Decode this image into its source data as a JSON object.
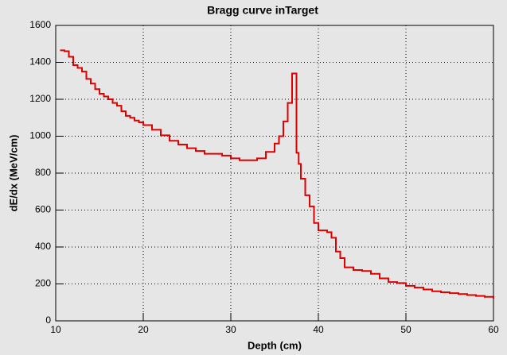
{
  "chart_data": {
    "type": "step",
    "title": "Bragg curve inTarget",
    "x_label": "Depth (cm)",
    "y_label": "dE/dx  (MeV/cm)",
    "x": [
      10.5,
      11,
      11.5,
      12,
      12.5,
      13,
      13.5,
      14,
      14.5,
      15,
      15.5,
      16,
      16.5,
      17,
      17.5,
      18,
      18.5,
      19,
      19.5,
      20,
      21,
      22,
      23,
      24,
      25,
      26,
      27,
      28,
      29,
      30,
      31,
      32,
      33,
      34,
      35,
      35.5,
      36,
      36.5,
      37,
      37.5,
      37.75,
      38,
      38.5,
      39,
      39.5,
      40,
      41,
      41.5,
      42,
      42.5,
      43,
      44,
      45,
      46,
      47,
      48,
      49,
      50,
      51,
      52,
      53,
      54,
      55,
      56,
      57,
      58,
      59,
      60
    ],
    "values": [
      1465,
      1460,
      1430,
      1385,
      1370,
      1350,
      1310,
      1285,
      1255,
      1230,
      1215,
      1200,
      1180,
      1165,
      1135,
      1110,
      1100,
      1085,
      1075,
      1060,
      1035,
      1005,
      975,
      955,
      935,
      920,
      905,
      905,
      895,
      880,
      870,
      870,
      880,
      915,
      960,
      1000,
      1080,
      1180,
      1340,
      910,
      850,
      770,
      680,
      620,
      530,
      490,
      480,
      450,
      375,
      340,
      290,
      275,
      270,
      255,
      230,
      210,
      205,
      190,
      180,
      170,
      160,
      155,
      150,
      145,
      140,
      135,
      130,
      120
    ],
    "color": "#e00000",
    "xlim": [
      10,
      60
    ],
    "xticks": [
      10,
      20,
      30,
      40,
      50,
      60
    ],
    "ylim": [
      0,
      1600
    ],
    "yticks": [
      0,
      200,
      400,
      600,
      800,
      1000,
      1200,
      1400,
      1600
    ],
    "grid": true
  }
}
